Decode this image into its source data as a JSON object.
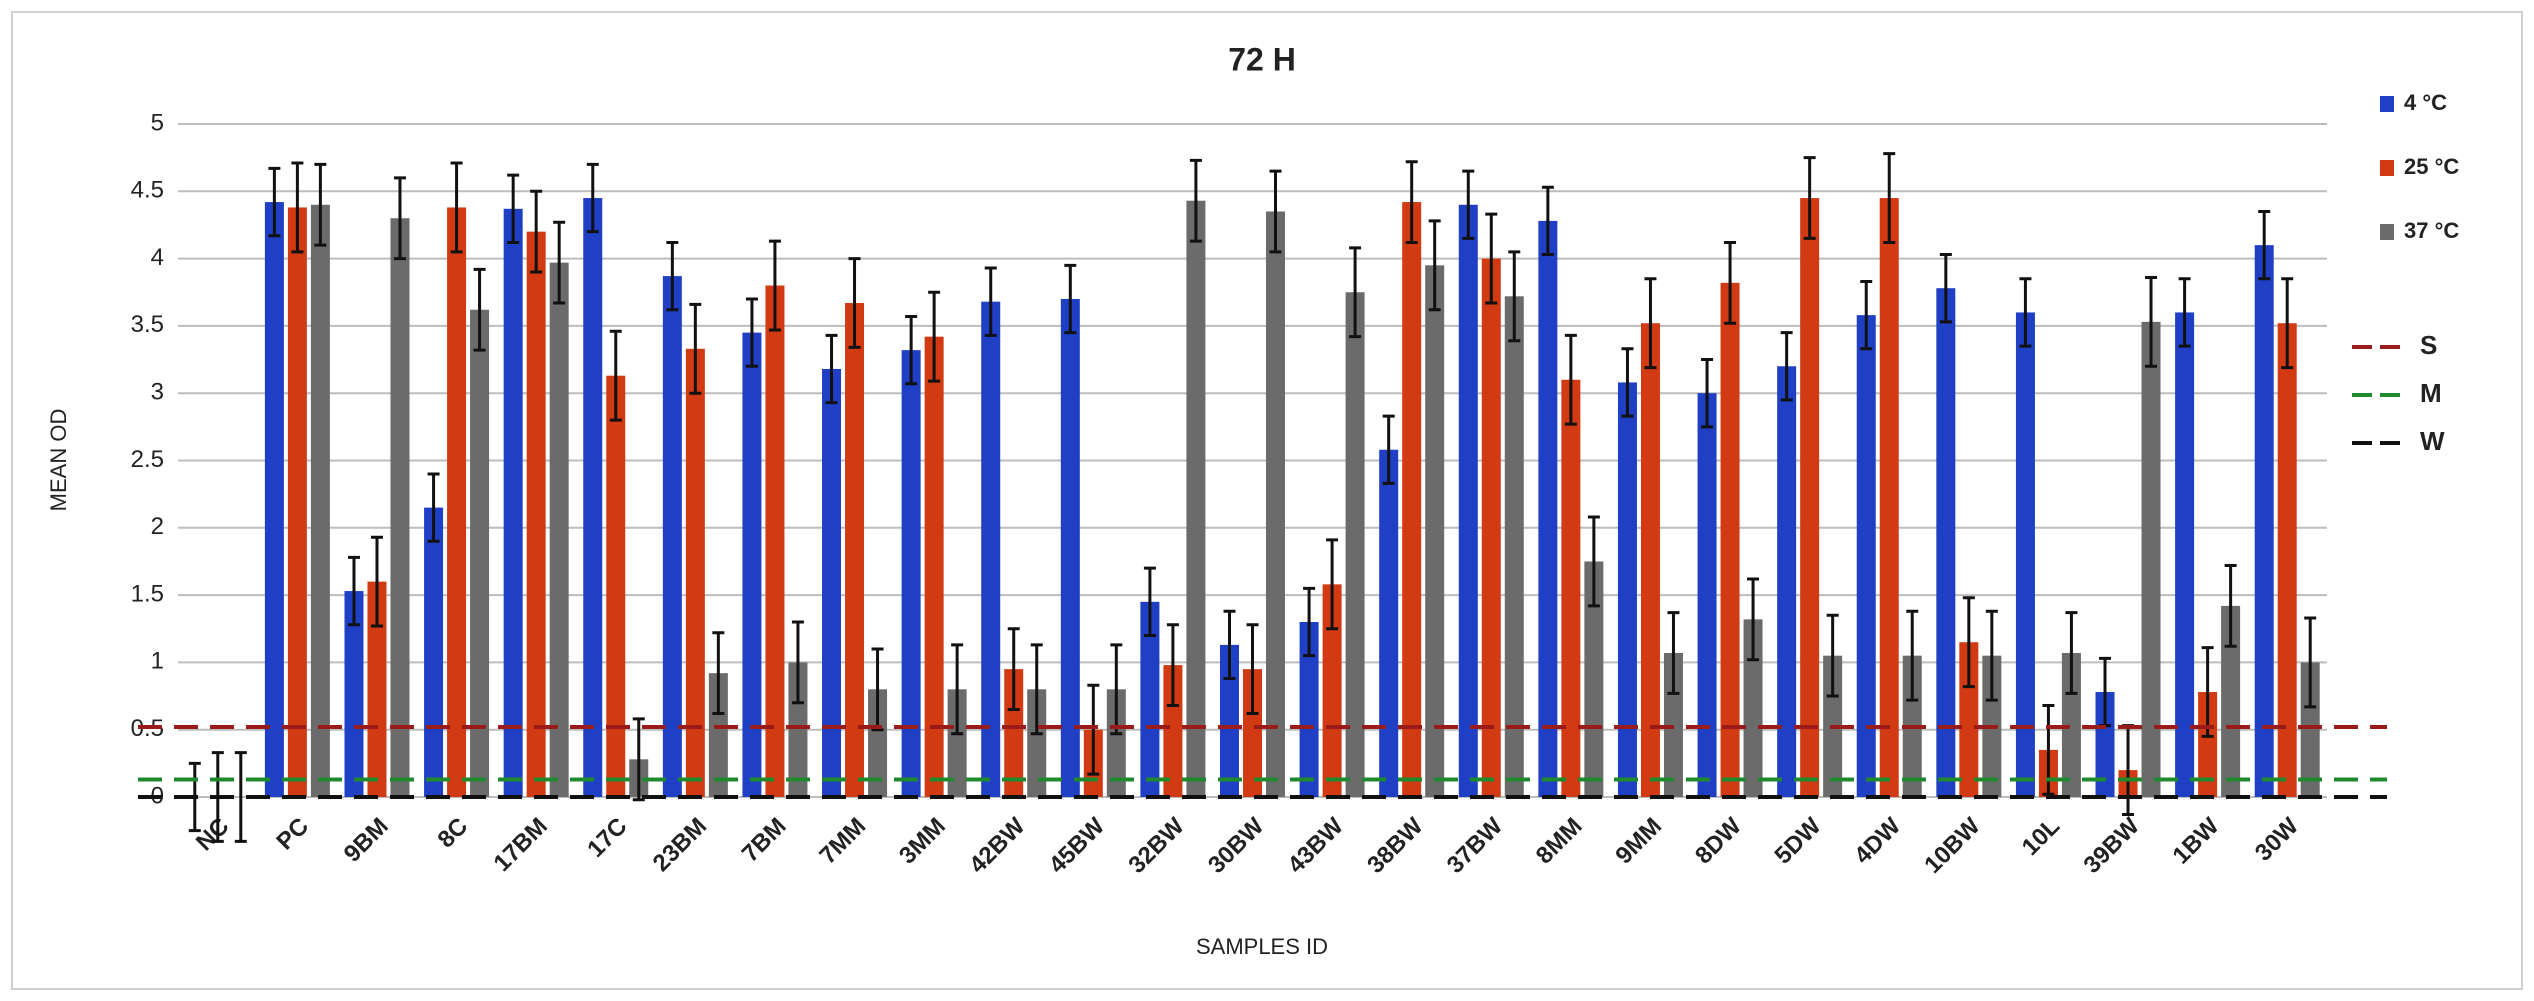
{
  "chart_data": {
    "type": "bar",
    "title": "72 H",
    "y_label": "MEAN OD",
    "x_label": "SAMPLES ID",
    "categories": [
      "NC",
      "PC",
      "9BM",
      "8C",
      "17BM",
      "17C",
      "23BM",
      "7BM",
      "7MM",
      "3MM",
      "42BW",
      "45BW",
      "32BW",
      "30BW",
      "43BW",
      "38BW",
      "37BW",
      "8MM",
      "9MM",
      "8DW",
      "5DW",
      "4DW",
      "10BW",
      "10L",
      "39BW",
      "1BW",
      "30W"
    ],
    "series": [
      {
        "name": "4 °C",
        "color": "#1f3fc4",
        "values": [
          0,
          4.42,
          1.53,
          2.15,
          4.37,
          4.45,
          3.87,
          3.45,
          3.18,
          3.32,
          3.68,
          3.7,
          1.45,
          1.13,
          1.3,
          2.58,
          4.4,
          4.28,
          3.08,
          3.0,
          3.2,
          3.58,
          3.78,
          3.6,
          0.78,
          3.6,
          4.1
        ],
        "errors": [
          0.25,
          0.25,
          0.25,
          0.25,
          0.25,
          0.25,
          0.25,
          0.25,
          0.25,
          0.25,
          0.25,
          0.25,
          0.25,
          0.25,
          0.25,
          0.25,
          0.25,
          0.25,
          0.25,
          0.25,
          0.25,
          0.25,
          0.25,
          0.25,
          0.25,
          0.25,
          0.25
        ]
      },
      {
        "name": "25 °C",
        "color": "#d23a14",
        "values": [
          0,
          4.38,
          1.6,
          4.38,
          4.2,
          3.13,
          3.33,
          3.8,
          3.67,
          3.42,
          0.95,
          0.5,
          0.98,
          0.95,
          1.58,
          4.42,
          4.0,
          3.1,
          3.52,
          3.82,
          4.45,
          4.45,
          1.15,
          0.35,
          0.2,
          0.78,
          3.52
        ],
        "errors": [
          0.33,
          0.33,
          0.33,
          0.33,
          0.3,
          0.33,
          0.33,
          0.33,
          0.33,
          0.33,
          0.3,
          0.33,
          0.3,
          0.33,
          0.33,
          0.3,
          0.33,
          0.33,
          0.33,
          0.3,
          0.3,
          0.33,
          0.33,
          0.33,
          0.33,
          0.33,
          0.33
        ]
      },
      {
        "name": "37 °C",
        "color": "#6b6b6b",
        "values": [
          0,
          4.4,
          4.3,
          3.62,
          3.97,
          0.28,
          0.92,
          1.0,
          0.8,
          0.8,
          0.8,
          0.8,
          4.43,
          4.35,
          3.75,
          3.95,
          3.72,
          1.75,
          1.07,
          1.32,
          1.05,
          1.05,
          1.05,
          1.07,
          3.53,
          1.42,
          1.0
        ],
        "errors": [
          0.33,
          0.3,
          0.3,
          0.3,
          0.3,
          0.3,
          0.3,
          0.3,
          0.3,
          0.33,
          0.33,
          0.33,
          0.3,
          0.3,
          0.33,
          0.33,
          0.33,
          0.33,
          0.3,
          0.3,
          0.3,
          0.33,
          0.33,
          0.3,
          0.33,
          0.3,
          0.33
        ]
      }
    ],
    "reference_lines": [
      {
        "name": "S",
        "value": 0.52,
        "color": "#9b1b1b"
      },
      {
        "name": "M",
        "value": 0.13,
        "color": "#1f8a2c"
      },
      {
        "name": "W",
        "value": 0,
        "color": "#111111"
      }
    ],
    "ylim": [
      0,
      5
    ],
    "yticks": [
      0,
      0.5,
      1,
      1.5,
      2,
      2.5,
      3,
      3.5,
      4,
      4.5,
      5
    ],
    "grid": true,
    "legend": "right"
  }
}
